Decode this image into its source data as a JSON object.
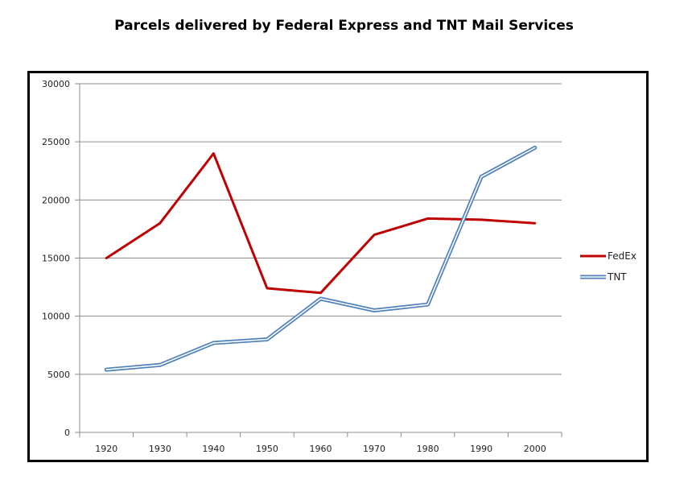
{
  "chart_data": {
    "type": "line",
    "title": "Parcels delivered by Federal Express and TNT Mail Services",
    "xlabel": "",
    "ylabel": "",
    "categories": [
      "1920",
      "1930",
      "1940",
      "1950",
      "1960",
      "1970",
      "1980",
      "1990",
      "2000"
    ],
    "y_ticks": [
      "0",
      "5000",
      "10000",
      "15000",
      "20000",
      "25000",
      "30000"
    ],
    "ylim": [
      0,
      30000
    ],
    "grid": true,
    "legend_position": "right",
    "series": [
      {
        "name": "FedEx",
        "color": "#c00000",
        "style": "solid",
        "values": [
          15000,
          18000,
          24000,
          12400,
          12000,
          17000,
          18400,
          18300,
          18000
        ]
      },
      {
        "name": "TNT",
        "color": "#4f81bd",
        "style": "double",
        "values": [
          5400,
          5800,
          7700,
          8000,
          11500,
          10500,
          11000,
          22000,
          24500
        ]
      }
    ]
  }
}
